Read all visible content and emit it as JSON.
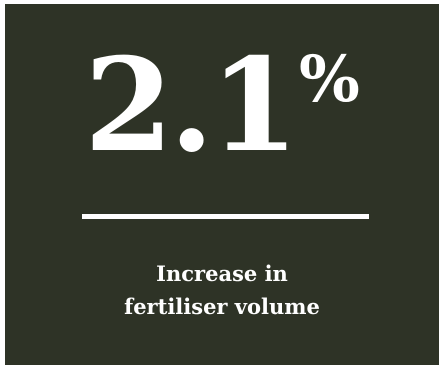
{
  "stat": {
    "value": "2.1",
    "unit": "%"
  },
  "caption": {
    "line1": "Increase in",
    "line2": "fertiliser volume"
  },
  "colors": {
    "background": "#2e3326",
    "text": "#ffffff"
  }
}
